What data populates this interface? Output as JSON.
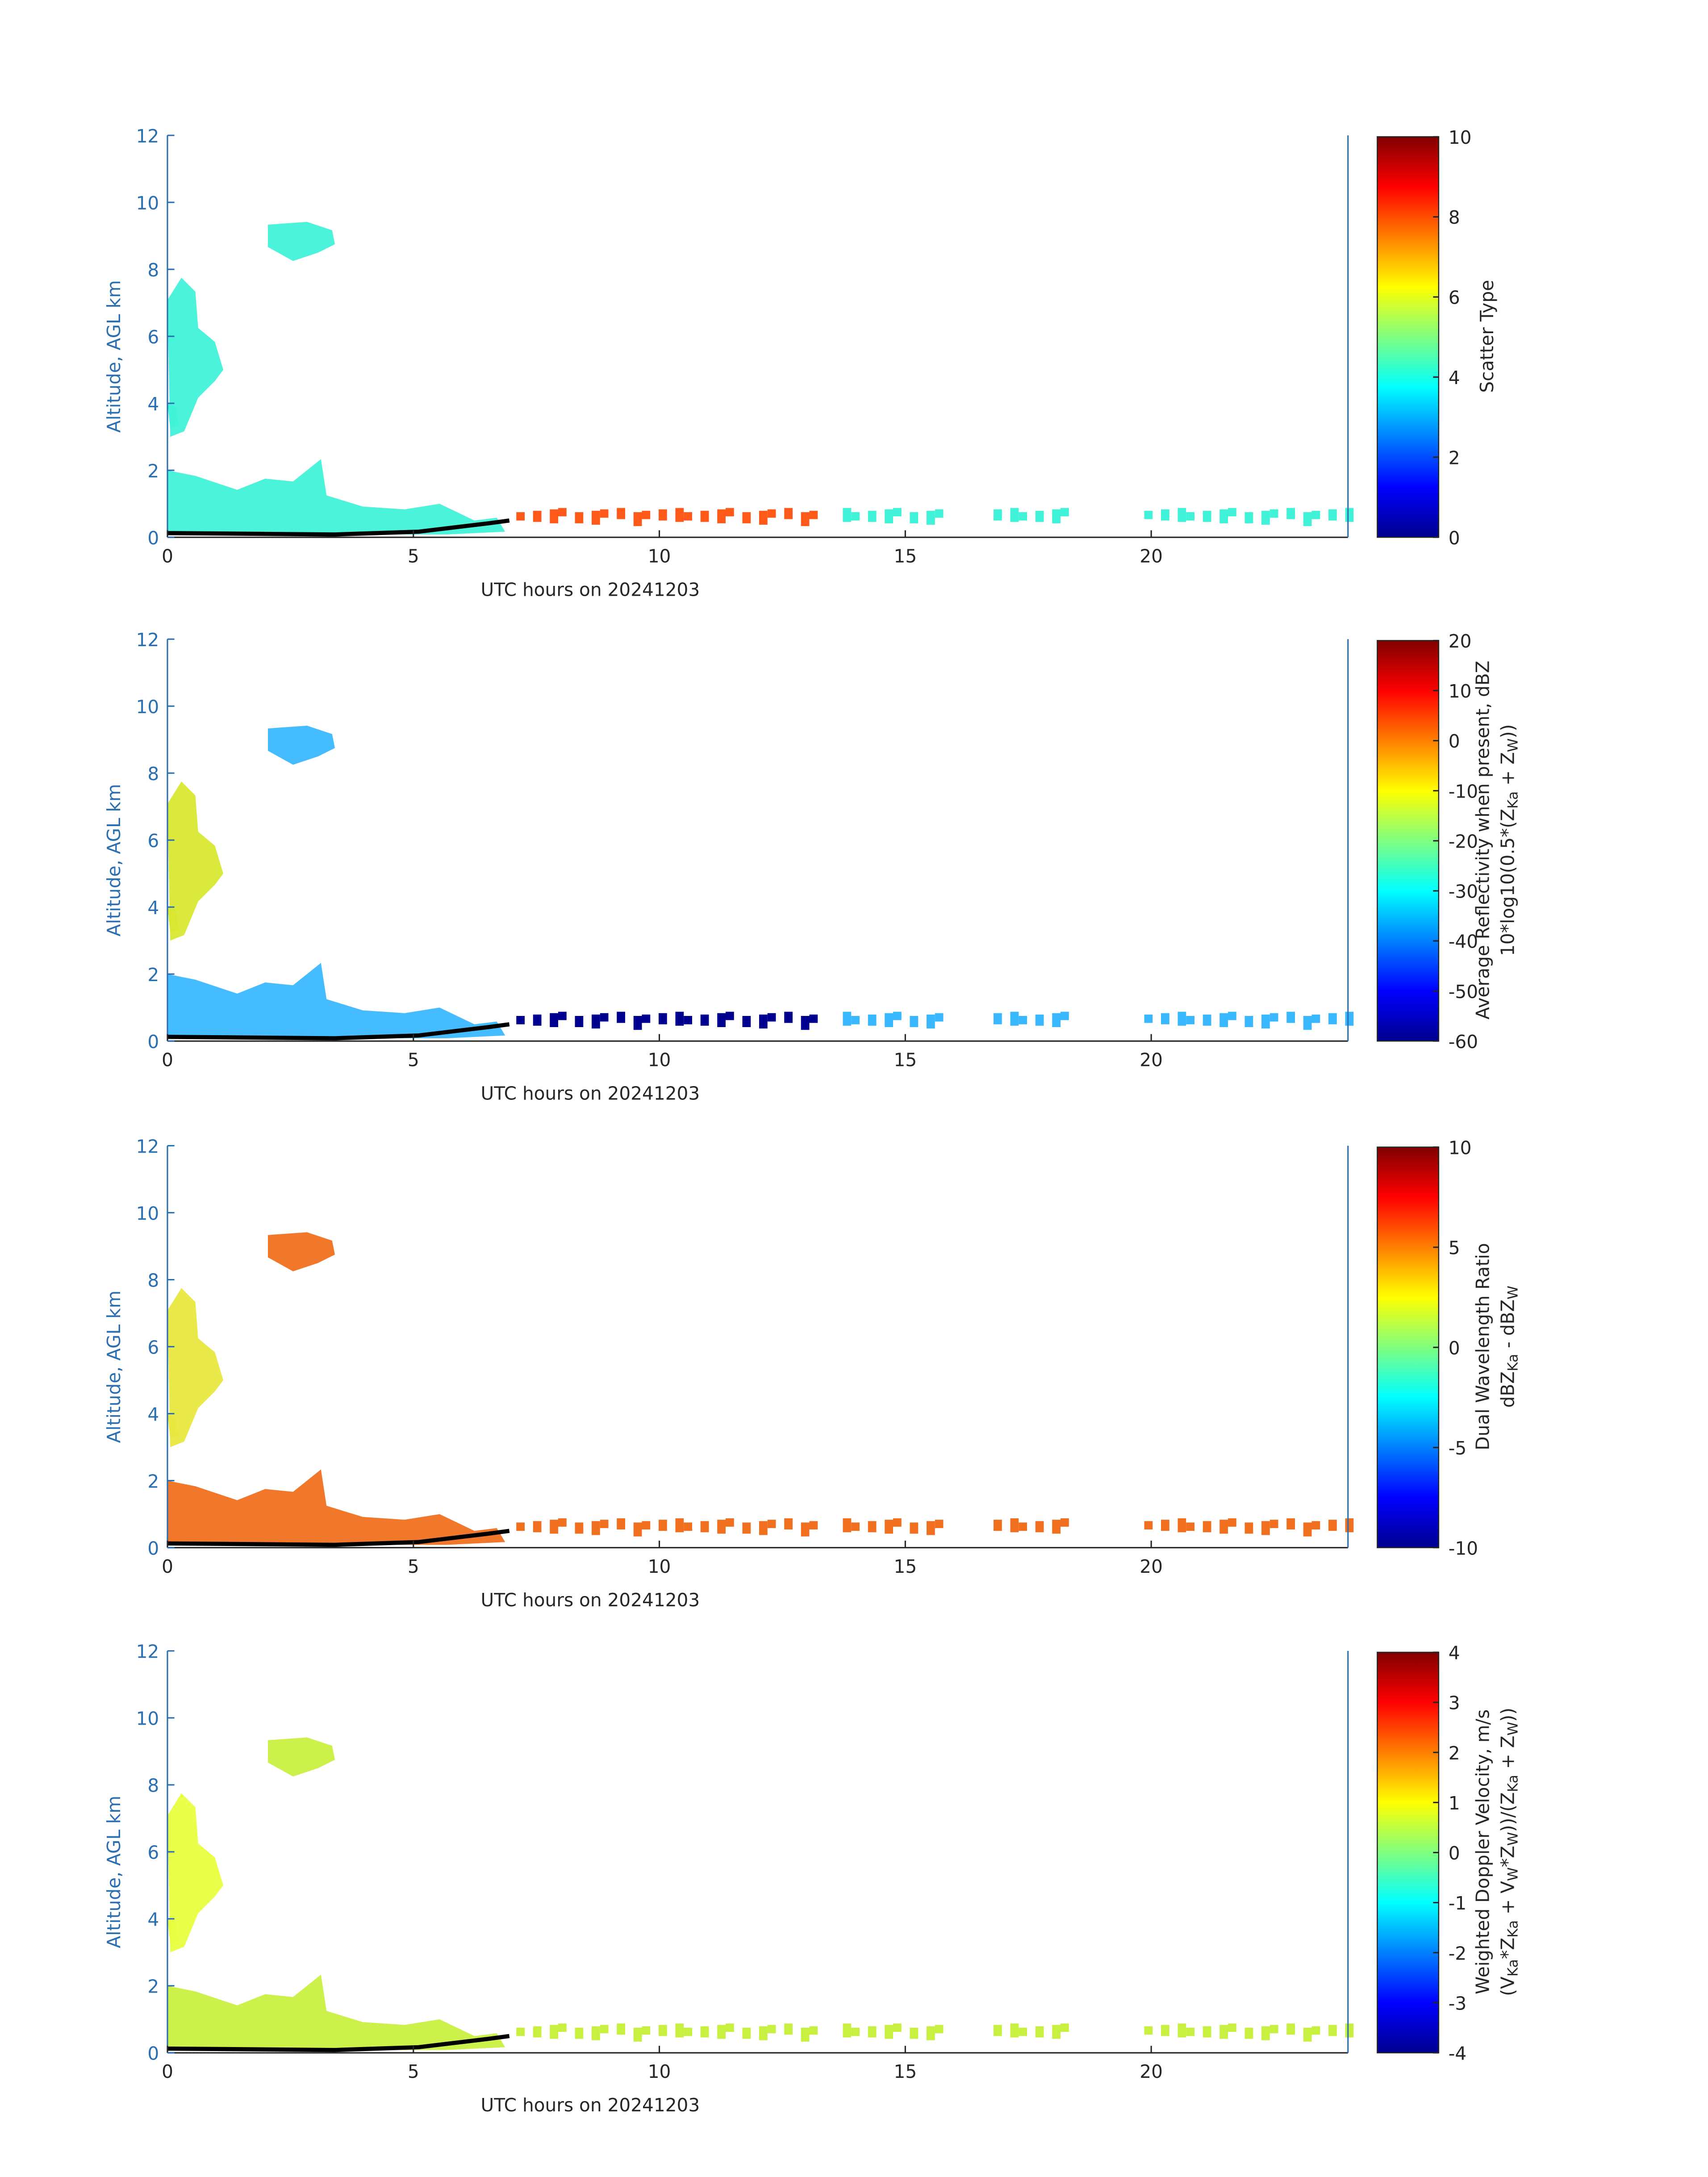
{
  "chart_data": [
    {
      "type": "heatmap",
      "xlabel": "UTC hours on 20241203",
      "ylabel": "Altitude, AGL km",
      "xlim": [
        0,
        24
      ],
      "xticks": [
        0,
        5,
        10,
        15,
        20
      ],
      "ylim": [
        0,
        12
      ],
      "yticks": [
        0,
        2,
        4,
        6,
        8,
        10,
        12
      ],
      "colormap": "jet",
      "clim": [
        0,
        10
      ],
      "cticks": [
        0,
        2,
        4,
        6,
        8,
        10
      ],
      "colorbar_label": [
        [
          "Scatter Type"
        ]
      ]
    },
    {
      "type": "heatmap",
      "xlabel": "UTC hours on 20241203",
      "ylabel": "Altitude, AGL km",
      "xlim": [
        0,
        24
      ],
      "xticks": [
        0,
        5,
        10,
        15,
        20
      ],
      "ylim": [
        0,
        12
      ],
      "yticks": [
        0,
        2,
        4,
        6,
        8,
        10,
        12
      ],
      "colormap": "jet",
      "clim": [
        -60,
        20
      ],
      "cticks": [
        -60,
        -50,
        -40,
        -30,
        -20,
        -10,
        0,
        10,
        20
      ],
      "colorbar_label": [
        [
          "Average Reflectivity when present, dBZ"
        ],
        [
          "10*log10(0.5*(Z",
          "Ka",
          " + Z",
          "W",
          "))"
        ]
      ]
    },
    {
      "type": "heatmap",
      "xlabel": "UTC hours on 20241203",
      "ylabel": "Altitude, AGL km",
      "xlim": [
        0,
        24
      ],
      "xticks": [
        0,
        5,
        10,
        15,
        20
      ],
      "ylim": [
        0,
        12
      ],
      "yticks": [
        0,
        2,
        4,
        6,
        8,
        10,
        12
      ],
      "colormap": "jet",
      "clim": [
        -10,
        10
      ],
      "cticks": [
        -10,
        -5,
        0,
        5,
        10
      ],
      "colorbar_label": [
        [
          "Dual Wavelength Ratio"
        ],
        [
          "dBZ",
          "Ka",
          " - dBZ",
          "W"
        ]
      ]
    },
    {
      "type": "heatmap",
      "xlabel": "UTC hours on 20241203",
      "ylabel": "Altitude, AGL km",
      "xlim": [
        0,
        24
      ],
      "xticks": [
        0,
        5,
        10,
        15,
        20
      ],
      "ylim": [
        0,
        12
      ],
      "yticks": [
        0,
        2,
        4,
        6,
        8,
        10,
        12
      ],
      "colormap": "jet",
      "clim": [
        -4,
        4
      ],
      "cticks": [
        -4,
        -3,
        -2,
        -1,
        0,
        1,
        2,
        3,
        4
      ],
      "colorbar_label": [
        [
          "Weighted Doppler Velocity, m/s"
        ],
        [
          "(V",
          "Ka",
          "*Z",
          "Ka",
          " + V",
          "W",
          "*Z",
          "W",
          "))/(Z",
          "Ka",
          " + Z",
          "W",
          "))"
        ]
      ]
    }
  ]
}
